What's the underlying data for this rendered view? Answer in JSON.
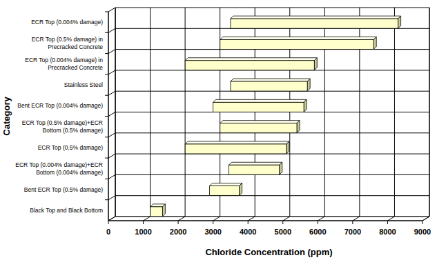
{
  "chart_data": {
    "type": "bar",
    "orientation": "horizontal",
    "x_label": "Chloride Concentration (ppm)",
    "y_label": "Category",
    "categories": [
      "ECR Top (0.004% damage)",
      "ECR Top (0.5% damage) in Precracked Concrete",
      "ECR Top (0.004% damage) in Precracked Concrete",
      "Stainless Steel",
      "Bent ECR Top (0.004% damage)",
      "ECR Top (0.5% damage)+ECR Bottom (0.5% damage)",
      "ECR Top (0.5% damage)",
      "ECR Top (0.004% damage)+ECR Bottom (0.004% damage)",
      "Bent ECR Top (0.5% damage)",
      "Black Top and Black Bottom"
    ],
    "values": [
      [
        3500,
        8300
      ],
      [
        3200,
        7600
      ],
      [
        2200,
        5900
      ],
      [
        3500,
        5700
      ],
      [
        3000,
        5600
      ],
      [
        3200,
        5400
      ],
      [
        2200,
        5100
      ],
      [
        3450,
        4900
      ],
      [
        2900,
        3750
      ],
      [
        1200,
        1550
      ]
    ],
    "color": "#ffffcc",
    "xlim": [
      0,
      9000
    ],
    "xticks": [
      0,
      1000,
      2000,
      3000,
      4000,
      5000,
      6000,
      7000,
      8000,
      9000
    ],
    "grid": true
  }
}
